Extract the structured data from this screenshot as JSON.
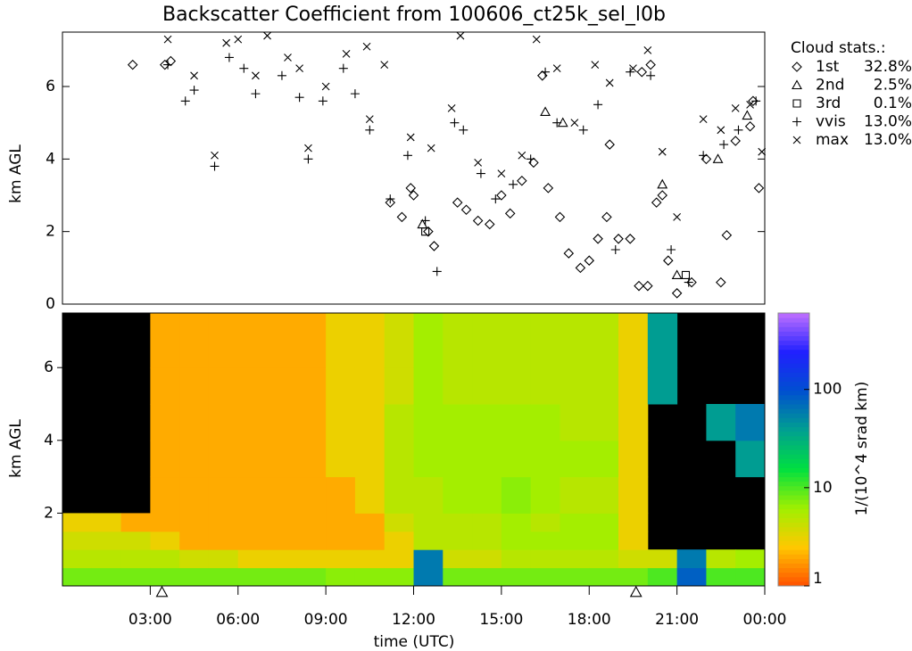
{
  "chart_data": [
    {
      "type": "scatter",
      "title": "Backscatter Coefficient from 100606_ct25k_sel_l0b",
      "ylabel": "km AGL",
      "legend_title": "Cloud stats.:",
      "xlim": [
        0,
        24
      ],
      "ylim": [
        0,
        7.5
      ],
      "yticks": [
        0,
        2,
        4,
        6
      ],
      "series": [
        {
          "name": "1st",
          "share": "32.8%",
          "marker": "diamond",
          "color": "#000000",
          "x": [
            2.4,
            3.5,
            3.7,
            11.2,
            11.6,
            11.9,
            12.0,
            12.5,
            12.7,
            13.5,
            13.8,
            14.2,
            14.6,
            15.0,
            15.3,
            15.7,
            16.1,
            16.6,
            17.0,
            17.3,
            17.7,
            18.0,
            18.3,
            18.6,
            19.0,
            19.4,
            19.7,
            20.0,
            20.3,
            20.5,
            20.7,
            21.0,
            21.5,
            22.0,
            22.5,
            22.7,
            23.0,
            23.5,
            23.8,
            18.7,
            19.8,
            20.1,
            16.4,
            23.6
          ],
          "values": [
            6.6,
            6.6,
            6.7,
            2.8,
            2.4,
            3.2,
            3.0,
            2.0,
            1.6,
            2.8,
            2.6,
            2.3,
            2.2,
            3.0,
            2.5,
            3.4,
            3.9,
            3.2,
            2.4,
            1.4,
            1.0,
            1.2,
            1.8,
            2.4,
            1.8,
            1.8,
            0.5,
            0.5,
            2.8,
            3.0,
            1.2,
            0.3,
            0.6,
            4.0,
            0.6,
            1.9,
            4.5,
            4.9,
            3.2,
            4.4,
            6.4,
            6.6,
            6.3,
            5.6
          ]
        },
        {
          "name": "2nd",
          "share": "2.5%",
          "marker": "triangle",
          "color": "#000000",
          "x": [
            12.3,
            16.5,
            17.1,
            20.5,
            21.0,
            22.4,
            23.4
          ],
          "values": [
            2.2,
            5.3,
            5.0,
            3.3,
            0.8,
            4.0,
            5.2
          ]
        },
        {
          "name": "3rd",
          "share": "0.1%",
          "marker": "square",
          "color": "#000000",
          "x": [
            12.4,
            21.3
          ],
          "values": [
            2.0,
            0.8
          ]
        },
        {
          "name": "vvis",
          "share": "13.0%",
          "marker": "plus",
          "color": "#000000",
          "x": [
            3.6,
            4.2,
            4.5,
            5.2,
            5.7,
            6.2,
            6.6,
            7.5,
            8.1,
            8.4,
            8.9,
            9.6,
            10.0,
            10.5,
            11.2,
            11.8,
            12.4,
            12.8,
            13.4,
            13.7,
            14.3,
            14.8,
            15.4,
            16.0,
            16.5,
            16.9,
            17.8,
            18.3,
            18.9,
            19.4,
            20.1,
            20.8,
            21.4,
            21.9,
            22.6,
            23.1,
            23.7
          ],
          "values": [
            6.6,
            5.6,
            5.9,
            3.8,
            6.8,
            6.5,
            5.8,
            6.3,
            5.7,
            4.0,
            5.6,
            6.5,
            5.8,
            4.8,
            2.9,
            4.1,
            2.3,
            0.9,
            5.0,
            4.8,
            3.6,
            2.9,
            3.3,
            4.0,
            6.4,
            5.0,
            4.8,
            5.5,
            1.5,
            6.4,
            6.3,
            1.5,
            0.6,
            4.1,
            4.4,
            4.8,
            5.6
          ]
        },
        {
          "name": "max",
          "share": "13.0%",
          "marker": "cross",
          "color": "#000000",
          "x": [
            3.6,
            4.5,
            5.2,
            5.6,
            6.0,
            6.6,
            7.0,
            7.7,
            8.1,
            8.4,
            9.0,
            9.7,
            10.4,
            10.5,
            11.0,
            11.9,
            12.6,
            13.3,
            13.6,
            14.2,
            15.0,
            15.7,
            16.2,
            16.9,
            17.5,
            18.2,
            18.7,
            19.5,
            20.0,
            20.5,
            21.0,
            21.9,
            22.5,
            23.0,
            23.5,
            23.9
          ],
          "values": [
            7.3,
            6.3,
            4.1,
            7.2,
            7.3,
            6.3,
            7.4,
            6.8,
            6.5,
            4.3,
            6.0,
            6.9,
            7.1,
            5.1,
            6.6,
            4.6,
            4.3,
            5.4,
            7.4,
            3.9,
            3.6,
            4.1,
            7.3,
            6.5,
            5.0,
            6.6,
            6.1,
            6.5,
            7.0,
            4.2,
            2.4,
            5.1,
            4.8,
            5.4,
            5.5,
            4.2
          ]
        }
      ]
    },
    {
      "type": "heatmap",
      "ylabel": "km AGL",
      "xlabel": "time (UTC)",
      "xlim": [
        0,
        24
      ],
      "ylim": [
        0,
        7.5
      ],
      "yticks": [
        2,
        4,
        6
      ],
      "xticks": [
        {
          "value": 3,
          "label": "03:00"
        },
        {
          "value": 6,
          "label": "06:00"
        },
        {
          "value": 9,
          "label": "09:00"
        },
        {
          "value": 12,
          "label": "12:00"
        },
        {
          "value": 15,
          "label": "15:00"
        },
        {
          "value": 18,
          "label": "18:00"
        },
        {
          "value": 21,
          "label": "21:00"
        },
        {
          "value": 24,
          "label": "00:00"
        }
      ],
      "markers_x": [
        3.4,
        19.6
      ],
      "xbins": [
        0,
        1,
        2,
        3,
        4,
        5,
        6,
        7,
        8,
        9,
        10,
        11,
        12,
        13,
        14,
        15,
        16,
        17,
        18,
        19,
        20,
        21,
        22,
        23,
        24
      ],
      "ybins": [
        0,
        0.5,
        1,
        1.5,
        2,
        3,
        4,
        5,
        6,
        7.5
      ],
      "values": [
        [
          8,
          5,
          4,
          3,
          null,
          null,
          null,
          null,
          null
        ],
        [
          8,
          5,
          4,
          3,
          null,
          null,
          null,
          null,
          null
        ],
        [
          8,
          5,
          4,
          2,
          null,
          null,
          null,
          null,
          null
        ],
        [
          8,
          5,
          3,
          2,
          2,
          2,
          2,
          2,
          2
        ],
        [
          8,
          4,
          2,
          2,
          2,
          2,
          2,
          2,
          2
        ],
        [
          8,
          4,
          2,
          2,
          2,
          2,
          2,
          2,
          2
        ],
        [
          8,
          3,
          2,
          2,
          2,
          2,
          2,
          2,
          2
        ],
        [
          8,
          3,
          2,
          2,
          2,
          2,
          2,
          2,
          2
        ],
        [
          8,
          3,
          2,
          2,
          2,
          2,
          2,
          2,
          2
        ],
        [
          7,
          3,
          2,
          2,
          2,
          3,
          3,
          3,
          3
        ],
        [
          7,
          3,
          2,
          2,
          3,
          3,
          3,
          3,
          3
        ],
        [
          7,
          3,
          3,
          4,
          5,
          5,
          5,
          4,
          4
        ],
        [
          60,
          60,
          5,
          5,
          5,
          6,
          6,
          6,
          6
        ],
        [
          8,
          4,
          5,
          5,
          6,
          6,
          6,
          5,
          5
        ],
        [
          8,
          4,
          5,
          5,
          6,
          6,
          6,
          5,
          5
        ],
        [
          8,
          5,
          6,
          6,
          7,
          6,
          6,
          5,
          5
        ],
        [
          8,
          5,
          6,
          5,
          6,
          6,
          6,
          5,
          5
        ],
        [
          8,
          5,
          6,
          6,
          5,
          6,
          5,
          5,
          5
        ],
        [
          8,
          5,
          6,
          6,
          5,
          6,
          5,
          5,
          5
        ],
        [
          8,
          4,
          3,
          3,
          3,
          3,
          3,
          3,
          3
        ],
        [
          10,
          4,
          null,
          null,
          null,
          null,
          null,
          40,
          40
        ],
        [
          80,
          60,
          null,
          null,
          null,
          null,
          null,
          null,
          null
        ],
        [
          10,
          5,
          null,
          null,
          null,
          null,
          40,
          null,
          null
        ],
        [
          10,
          6,
          null,
          null,
          null,
          40,
          60,
          null,
          null
        ]
      ],
      "colorbar": {
        "label": "1/(10^4 srad km)",
        "log": true,
        "clim": [
          1,
          600
        ],
        "ticks": [
          1,
          10,
          100
        ],
        "colormap": [
          "#ff5000",
          "#ffc800",
          "#a0f000",
          "#00e040",
          "#00a090",
          "#0050d0",
          "#2020ff",
          "#c070ff"
        ]
      }
    }
  ]
}
